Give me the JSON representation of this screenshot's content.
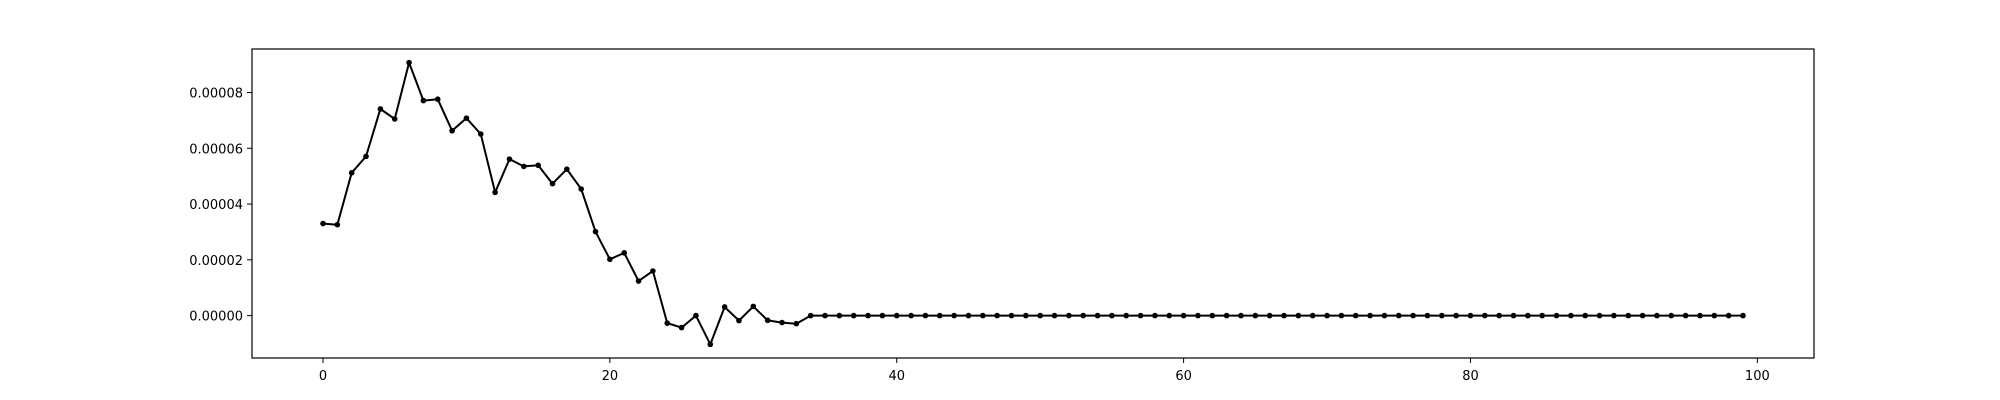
{
  "chart_data": {
    "type": "line",
    "title": "",
    "xlabel": "",
    "ylabel": "",
    "xlim": [
      -4.95,
      103.95
    ],
    "ylim": [
      -1.52e-05,
      9.56e-05
    ],
    "grid": false,
    "legend": "none",
    "line_color": "#000000",
    "marker": "circle",
    "x_ticks": [
      0,
      20,
      40,
      60,
      80,
      100
    ],
    "x_tick_labels": [
      "0",
      "20",
      "40",
      "60",
      "80",
      "100"
    ],
    "y_ticks": [
      0,
      2e-05,
      4e-05,
      6e-05,
      8e-05
    ],
    "y_tick_labels": [
      "0.00000",
      "0.00002",
      "0.00004",
      "0.00006",
      "0.00008"
    ],
    "series": [
      {
        "x": [
          0,
          1,
          2,
          3,
          4,
          5,
          6,
          7,
          8,
          9,
          10,
          11,
          12,
          13,
          14,
          15,
          16,
          17,
          18,
          19,
          20,
          21,
          22,
          23,
          24,
          25,
          26,
          27,
          28,
          29,
          30,
          31,
          32,
          33,
          34,
          35,
          36,
          37,
          38,
          39,
          40,
          41,
          42,
          43,
          44,
          45,
          46,
          47,
          48,
          49,
          50,
          51,
          52,
          53,
          54,
          55,
          56,
          57,
          58,
          59,
          60,
          61,
          62,
          63,
          64,
          65,
          66,
          67,
          68,
          69,
          70,
          71,
          72,
          73,
          74,
          75,
          76,
          77,
          78,
          79,
          80,
          81,
          82,
          83,
          84,
          85,
          86,
          87,
          88,
          89,
          90,
          91,
          92,
          93,
          94,
          95,
          96,
          97,
          98,
          99
        ],
        "values": [
          3.3e-05,
          3.26e-05,
          5.12e-05,
          5.71e-05,
          7.41e-05,
          7.05e-05,
          9.07e-05,
          7.71e-05,
          7.76e-05,
          6.63e-05,
          7.08e-05,
          6.51e-05,
          4.42e-05,
          5.61e-05,
          5.35e-05,
          5.39e-05,
          4.73e-05,
          5.25e-05,
          4.54e-05,
          3.01e-05,
          2.02e-05,
          2.25e-05,
          1.24e-05,
          1.6e-05,
          -2.7e-06,
          -4.3e-06,
          0,
          -1.03e-05,
          3.1e-06,
          -1.8e-06,
          3.3e-06,
          -1.7e-06,
          -2.5e-06,
          -2.9e-06,
          0,
          0,
          0,
          0,
          0,
          0,
          0,
          0,
          0,
          0,
          0,
          0,
          0,
          0,
          0,
          0,
          0,
          0,
          0,
          0,
          0,
          0,
          0,
          0,
          0,
          0,
          0,
          0,
          0,
          0,
          0,
          0,
          0,
          0,
          0,
          0,
          0,
          0,
          0,
          0,
          0,
          0,
          0,
          0,
          0,
          0,
          0,
          0,
          0,
          0,
          0,
          0,
          0,
          0,
          0,
          0,
          0,
          0,
          0,
          0,
          0,
          0,
          0,
          0,
          0,
          0
        ]
      }
    ]
  }
}
